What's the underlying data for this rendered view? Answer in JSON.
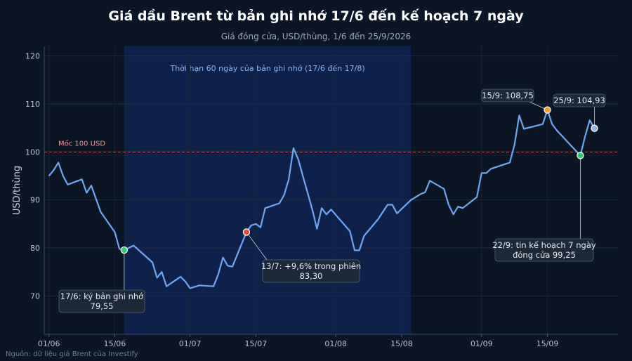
{
  "title": "Giá dầu Brent từ bản ghi nhớ 17/6 đến kế hoạch 7 ngày",
  "subtitle": "Giá đóng cửa, USD/thùng, 1/6 đến 25/9/2026",
  "source": "Nguồn: dữ liệu giá Brent của Investify",
  "colors": {
    "background": "#0b1526",
    "line": "#6fa6ef",
    "band": "#0f2550",
    "reference": "#d9534f",
    "marker_green": "#2ecc71",
    "marker_red": "#e74c3c",
    "marker_orange": "#f0a030",
    "marker_blue": "#8ab8ee"
  },
  "chart_data": {
    "type": "line",
    "title": "Giá dầu Brent từ bản ghi nhớ 17/6 đến kế hoạch 7 ngày",
    "subtitle": "Giá đóng cửa, USD/thùng, 1/6 đến 25/9/2026",
    "ylabel": "USD/thùng",
    "xlabel": "",
    "ylim": [
      62,
      122
    ],
    "yticks": [
      70,
      80,
      90,
      100,
      110,
      120
    ],
    "xlim": [
      "2026-05-31",
      "2026-09-30"
    ],
    "xticks": [
      {
        "date": "2026-06-01",
        "label": "01/06"
      },
      {
        "date": "2026-06-15",
        "label": "15/06"
      },
      {
        "date": "2026-07-01",
        "label": "01/07"
      },
      {
        "date": "2026-07-15",
        "label": "15/07"
      },
      {
        "date": "2026-08-01",
        "label": "01/08"
      },
      {
        "date": "2026-08-15",
        "label": "15/08"
      },
      {
        "date": "2026-09-01",
        "label": "01/09"
      },
      {
        "date": "2026-09-15",
        "label": "15/09"
      }
    ],
    "grid": true,
    "series": [
      {
        "points": [
          [
            "2026-06-01",
            95.0
          ],
          [
            "2026-06-02",
            96.2
          ],
          [
            "2026-06-03",
            97.8
          ],
          [
            "2026-06-04",
            95.0
          ],
          [
            "2026-06-05",
            93.2
          ],
          [
            "2026-06-08",
            94.3
          ],
          [
            "2026-06-09",
            91.5
          ],
          [
            "2026-06-10",
            93.0
          ],
          [
            "2026-06-12",
            87.5
          ],
          [
            "2026-06-15",
            83.3
          ],
          [
            "2026-06-16",
            79.8
          ],
          [
            "2026-06-17",
            79.55
          ],
          [
            "2026-06-18",
            80.0
          ],
          [
            "2026-06-19",
            80.5
          ],
          [
            "2026-06-23",
            77.0
          ],
          [
            "2026-06-24",
            73.8
          ],
          [
            "2026-06-25",
            75.0
          ],
          [
            "2026-06-26",
            72.0
          ],
          [
            "2026-06-29",
            74.0
          ],
          [
            "2026-06-30",
            73.0
          ],
          [
            "2026-07-01",
            71.6
          ],
          [
            "2026-07-03",
            72.2
          ],
          [
            "2026-07-06",
            72.0
          ],
          [
            "2026-07-07",
            74.5
          ],
          [
            "2026-07-08",
            78.0
          ],
          [
            "2026-07-09",
            76.3
          ],
          [
            "2026-07-10",
            76.1
          ],
          [
            "2026-07-13",
            83.3
          ],
          [
            "2026-07-14",
            84.7
          ],
          [
            "2026-07-15",
            85.0
          ],
          [
            "2026-07-16",
            84.3
          ],
          [
            "2026-07-17",
            88.3
          ],
          [
            "2026-07-20",
            89.3
          ],
          [
            "2026-07-21",
            91.0
          ],
          [
            "2026-07-22",
            94.3
          ],
          [
            "2026-07-23",
            100.8
          ],
          [
            "2026-07-24",
            98.5
          ],
          [
            "2026-07-27",
            88.0
          ],
          [
            "2026-07-28",
            84.0
          ],
          [
            "2026-07-29",
            88.3
          ],
          [
            "2026-07-30",
            87.0
          ],
          [
            "2026-07-31",
            88.0
          ],
          [
            "2026-08-04",
            83.5
          ],
          [
            "2026-08-05",
            79.5
          ],
          [
            "2026-08-06",
            79.5
          ],
          [
            "2026-08-07",
            82.5
          ],
          [
            "2026-08-10",
            86.0
          ],
          [
            "2026-08-12",
            89.0
          ],
          [
            "2026-08-13",
            89.0
          ],
          [
            "2026-08-14",
            87.2
          ],
          [
            "2026-08-17",
            90.0
          ],
          [
            "2026-08-19",
            91.2
          ],
          [
            "2026-08-20",
            91.6
          ],
          [
            "2026-08-21",
            94.0
          ],
          [
            "2026-08-24",
            92.3
          ],
          [
            "2026-08-25",
            89.0
          ],
          [
            "2026-08-26",
            87.0
          ],
          [
            "2026-08-27",
            88.6
          ],
          [
            "2026-08-28",
            88.3
          ],
          [
            "2026-08-31",
            90.6
          ],
          [
            "2026-09-01",
            95.6
          ],
          [
            "2026-09-02",
            95.6
          ],
          [
            "2026-09-03",
            96.5
          ],
          [
            "2026-09-07",
            97.8
          ],
          [
            "2026-09-08",
            101.5
          ],
          [
            "2026-09-09",
            107.6
          ],
          [
            "2026-09-10",
            104.8
          ],
          [
            "2026-09-14",
            105.8
          ],
          [
            "2026-09-15",
            108.75
          ],
          [
            "2026-09-16",
            105.8
          ],
          [
            "2026-09-17",
            104.5
          ],
          [
            "2026-09-22",
            99.25
          ],
          [
            "2026-09-23",
            103.2
          ],
          [
            "2026-09-24",
            106.6
          ],
          [
            "2026-09-25",
            104.93
          ]
        ]
      }
    ],
    "shaded_region": {
      "start": "2026-06-17",
      "end": "2026-08-17",
      "label": "Thời hạn 60 ngày của bản ghi nhớ (17/6 đến 17/8)"
    },
    "reference_line": {
      "y": 100,
      "label": "Mốc 100 USD"
    },
    "annotations": [
      {
        "date": "2026-06-17",
        "value": 79.55,
        "color": "green",
        "lines": [
          "17/6: ký bản ghi nhớ",
          "79,55"
        ]
      },
      {
        "date": "2026-07-13",
        "value": 83.3,
        "color": "red",
        "lines": [
          "13/7: +9,6% trong phiên",
          "83,30"
        ]
      },
      {
        "date": "2026-09-15",
        "value": 108.75,
        "color": "orange",
        "lines": [
          "15/9: 108,75"
        ]
      },
      {
        "date": "2026-09-25",
        "value": 104.93,
        "color": "blue",
        "lines": [
          "25/9: 104,93"
        ]
      },
      {
        "date": "2026-09-22",
        "value": 99.25,
        "color": "green",
        "lines": [
          "22/9: tin kế hoạch 7 ngày",
          "đóng cửa 99,25"
        ]
      }
    ]
  }
}
